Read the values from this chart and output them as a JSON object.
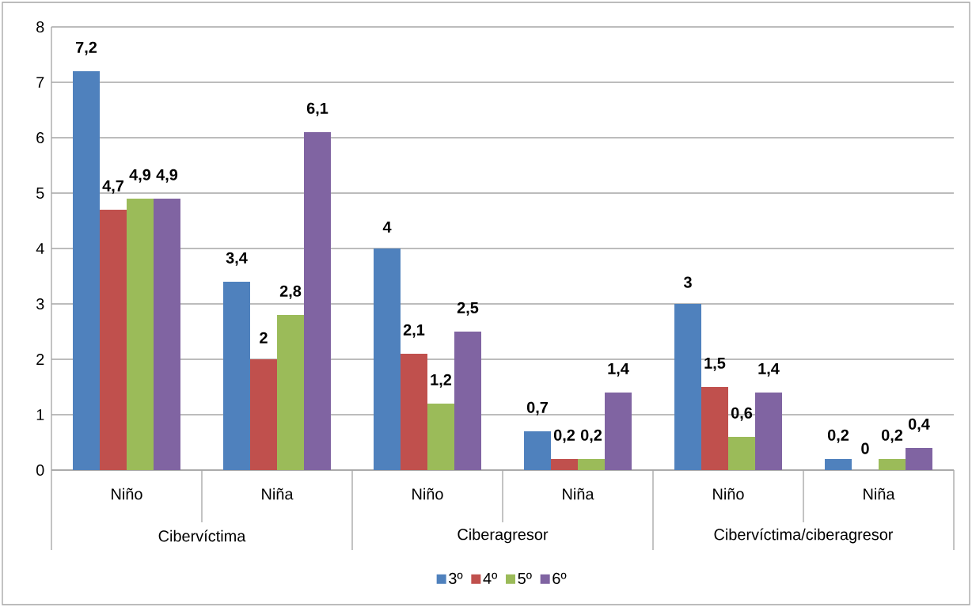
{
  "chart_data": {
    "type": "bar",
    "categories": [
      "Niño",
      "Niña",
      "Niño",
      "Niña",
      "Niño",
      "Niña"
    ],
    "annotations": [
      "Cibervíctima",
      "Ciberagresor",
      "Cibervíctima/ciberagresor"
    ],
    "series": [
      {
        "name": "3º",
        "color": "#4f81bd",
        "values": [
          7.2,
          3.4,
          4,
          0.7,
          3,
          0.2
        ],
        "value_labels": [
          "7,2",
          "3,4",
          "4",
          "0,7",
          "3",
          "0,2"
        ]
      },
      {
        "name": "4º",
        "color": "#c0504d",
        "values": [
          4.7,
          2,
          2.1,
          0.2,
          1.5,
          0
        ],
        "value_labels": [
          "4,7",
          "2",
          "2,1",
          "0,2",
          "1,5",
          "0"
        ]
      },
      {
        "name": "5º",
        "color": "#9bbb59",
        "values": [
          4.9,
          2.8,
          1.2,
          0.2,
          0.6,
          0.2
        ],
        "value_labels": [
          "4,9",
          "2,8",
          "1,2",
          "0,2",
          "0,6",
          "0,2"
        ]
      },
      {
        "name": "6º",
        "color": "#8064a2",
        "values": [
          4.9,
          6.1,
          2.5,
          1.4,
          1.4,
          0.4
        ],
        "value_labels": [
          "4,9",
          "6,1",
          "2,5",
          "1,4",
          "1,4",
          "0,4"
        ]
      }
    ],
    "ylim": [
      0,
      8
    ],
    "yticks": [
      0,
      1,
      2,
      3,
      4,
      5,
      6,
      7,
      8
    ],
    "grid": "y",
    "legend": "bottom"
  }
}
